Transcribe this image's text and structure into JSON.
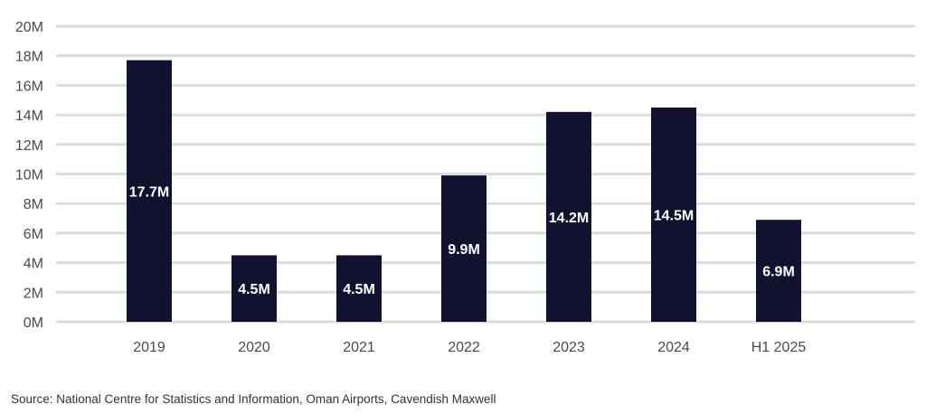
{
  "chart_data": {
    "type": "bar",
    "title": "",
    "xlabel": "",
    "ylabel": "",
    "categories": [
      "2019",
      "2020",
      "2021",
      "2022",
      "2023",
      "2024",
      "H1 2025"
    ],
    "values": [
      17.7,
      4.5,
      4.5,
      9.9,
      14.2,
      14.5,
      6.9
    ],
    "value_labels": [
      "17.7M",
      "4.5M",
      "4.5M",
      "9.9M",
      "14.2M",
      "14.5M",
      "6.9M"
    ],
    "ylim": [
      0,
      20
    ],
    "yticks": [
      0,
      2,
      4,
      6,
      8,
      10,
      12,
      14,
      16,
      18,
      20
    ],
    "ytick_labels": [
      "0M",
      "2M",
      "4M",
      "6M",
      "8M",
      "10M",
      "12M",
      "14M",
      "16M",
      "18M",
      "20M"
    ],
    "grid": true,
    "legend": "none",
    "colors": {
      "bar": "#111130",
      "grid": "#dcdcdc",
      "value_label": "#ffffff",
      "axis_text": "#4a4a4a"
    }
  },
  "source": "Source: National Centre for Statistics and Information, Oman Airports, Cavendish Maxwell"
}
